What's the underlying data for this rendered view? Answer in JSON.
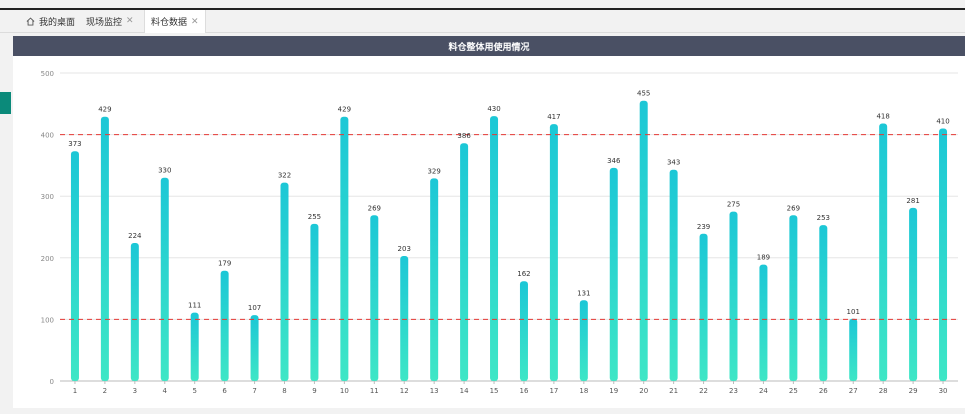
{
  "tabs": [
    {
      "label": "我的桌面",
      "closable": false,
      "active": false
    },
    {
      "label": "现场监控",
      "closable": true,
      "active": false
    },
    {
      "label": "料仓数据",
      "closable": true,
      "active": true
    }
  ],
  "chart_data": {
    "type": "bar",
    "title": "料仓整体用使用情况",
    "categories": [
      "1",
      "2",
      "3",
      "4",
      "5",
      "6",
      "7",
      "8",
      "9",
      "10",
      "11",
      "12",
      "13",
      "14",
      "15",
      "16",
      "17",
      "18",
      "19",
      "20",
      "21",
      "22",
      "23",
      "24",
      "25",
      "26",
      "27",
      "28",
      "29",
      "30"
    ],
    "values": [
      373,
      429,
      224,
      330,
      111,
      179,
      107,
      322,
      255,
      429,
      269,
      203,
      329,
      386,
      430,
      162,
      417,
      131,
      346,
      455,
      343,
      239,
      275,
      189,
      269,
      253,
      101,
      418,
      281,
      410
    ],
    "ylim": [
      0,
      500
    ],
    "yticks": [
      0,
      100,
      200,
      300,
      400,
      500
    ],
    "xlabel": "",
    "ylabel": "",
    "grid": true,
    "reference_lines": [
      400,
      100
    ],
    "colors": {
      "bar_top": "#1cc7d6",
      "bar_bottom": "#3ee6c6",
      "ref_line": "#e53935",
      "header_bg": "#4a5064"
    }
  }
}
